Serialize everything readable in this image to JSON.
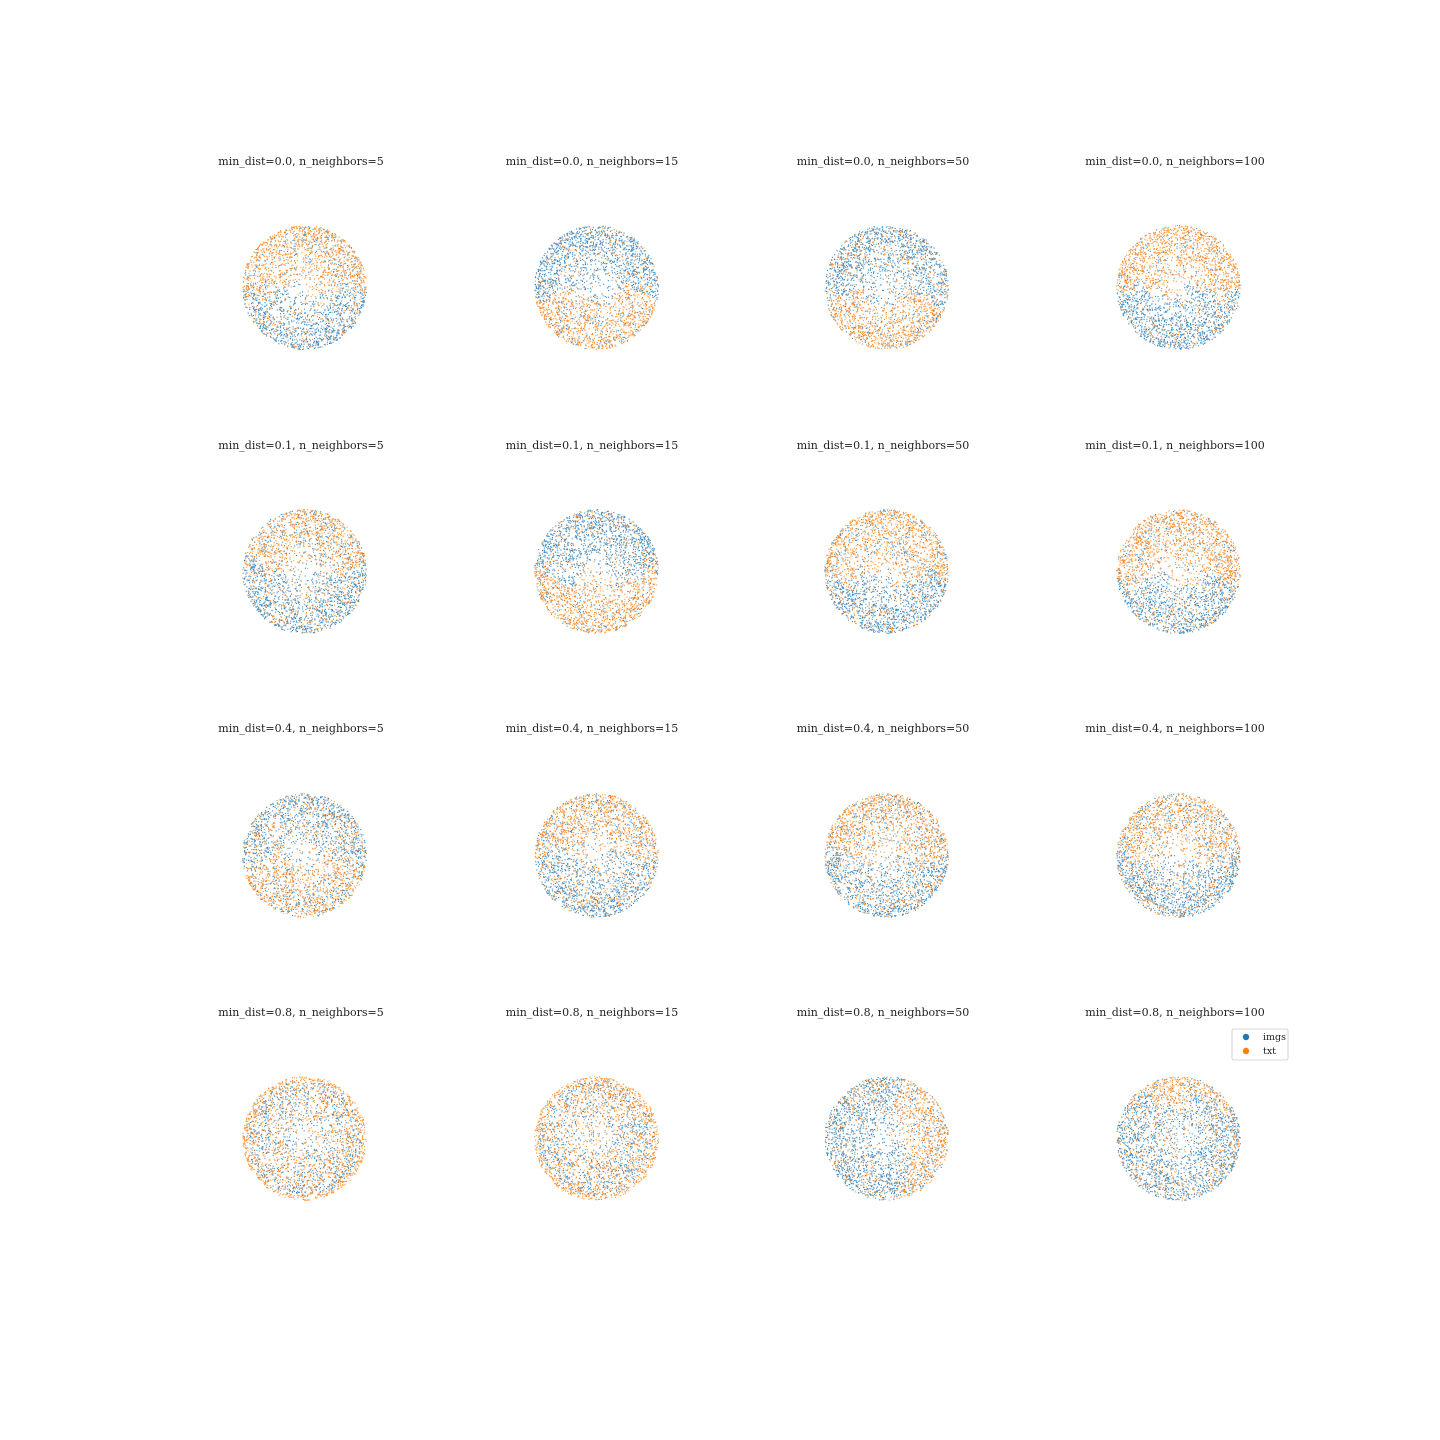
{
  "chart_data": {
    "type": "scatter",
    "layout": {
      "rows": 4,
      "cols": 4
    },
    "colors": {
      "imgs": "#1f77b4",
      "txt": "#ff7f0e"
    },
    "series": [
      {
        "name": "imgs",
        "color": "#1f77b4"
      },
      {
        "name": "txt",
        "color": "#ff7f0e"
      }
    ],
    "legend": {
      "position": "last-panel top-right",
      "entries": [
        "imgs",
        "txt"
      ]
    },
    "axes": "off",
    "panels": [
      {
        "title": "min_dist=0.0, n_neighbors=5",
        "pattern": "split",
        "top": "txt",
        "boundary": 0.05,
        "mix": 0.35
      },
      {
        "title": "min_dist=0.0, n_neighbors=15",
        "pattern": "split",
        "top": "imgs",
        "boundary": 0.1,
        "mix": 0.3
      },
      {
        "title": "min_dist=0.0, n_neighbors=50",
        "pattern": "split",
        "top": "imgs",
        "boundary": 0.15,
        "mix": 0.3
      },
      {
        "title": "min_dist=0.0, n_neighbors=100",
        "pattern": "split",
        "top": "txt",
        "boundary": 0.05,
        "mix": 0.2
      },
      {
        "title": "min_dist=0.1, n_neighbors=5",
        "pattern": "split",
        "top": "txt",
        "boundary": -0.05,
        "mix": 0.4
      },
      {
        "title": "min_dist=0.1, n_neighbors=15",
        "pattern": "split",
        "top": "imgs",
        "boundary": 0.1,
        "mix": 0.3
      },
      {
        "title": "min_dist=0.1, n_neighbors=50",
        "pattern": "split",
        "top": "txt",
        "boundary": 0.1,
        "mix": 0.3
      },
      {
        "title": "min_dist=0.1, n_neighbors=100",
        "pattern": "split",
        "top": "txt",
        "boundary": 0.15,
        "mix": 0.3
      },
      {
        "title": "min_dist=0.4, n_neighbors=5",
        "pattern": "split",
        "top": "imgs",
        "boundary": 0.05,
        "mix": 0.45
      },
      {
        "title": "min_dist=0.4, n_neighbors=15",
        "pattern": "split",
        "top": "txt",
        "boundary": 0.0,
        "mix": 0.4
      },
      {
        "title": "min_dist=0.4, n_neighbors=50",
        "pattern": "split",
        "top": "txt",
        "boundary": 0.05,
        "mix": 0.4
      },
      {
        "title": "min_dist=0.4, n_neighbors=100",
        "pattern": "split",
        "top": "txt",
        "boundary": 0.05,
        "mix": 0.4
      },
      {
        "title": "min_dist=0.8, n_neighbors=5",
        "pattern": "mixed",
        "ring": "txt",
        "mix": 0.5
      },
      {
        "title": "min_dist=0.8, n_neighbors=15",
        "pattern": "mixed",
        "ring": "txt",
        "mix": 0.5
      },
      {
        "title": "min_dist=0.8, n_neighbors=50",
        "pattern": "vsplit",
        "left": "imgs",
        "boundary": 0.25,
        "mix": 0.35
      },
      {
        "title": "min_dist=0.8, n_neighbors=100",
        "pattern": "split",
        "top": "txt",
        "boundary": -0.55,
        "mix": 0.4
      }
    ]
  }
}
